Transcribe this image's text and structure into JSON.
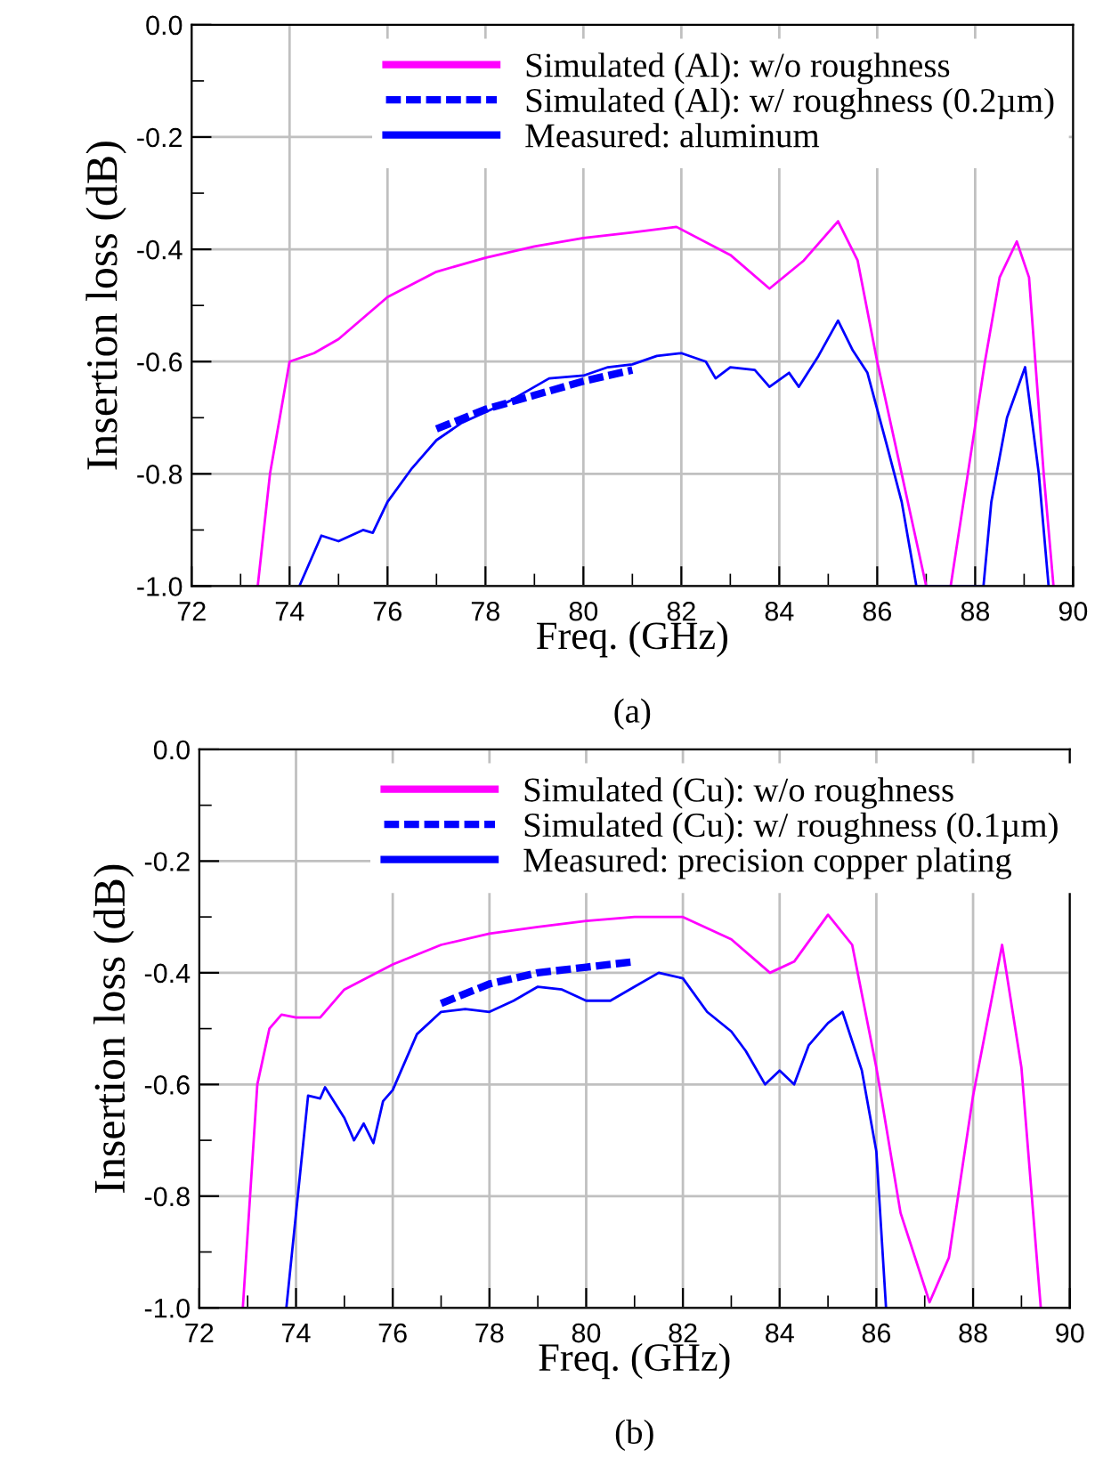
{
  "chart_data": [
    {
      "type": "line",
      "xlabel": "Freq. (GHz)",
      "ylabel": "Insertion loss (dB)",
      "annotations": [
        "(a)"
      ],
      "xlim": [
        72,
        90
      ],
      "xticks": [
        72,
        74,
        76,
        78,
        80,
        82,
        84,
        86,
        88,
        90
      ],
      "ylim": [
        -1.0,
        0.0
      ],
      "yticks": [
        {
          "value": -1.0,
          "label": "-1.0"
        },
        {
          "value": -0.8,
          "label": "-0.8"
        },
        {
          "value": -0.6,
          "label": "-0.6"
        },
        {
          "value": -0.4,
          "label": "-0.4"
        },
        {
          "value": -0.2,
          "label": "-0.2"
        },
        {
          "value": 0.0,
          "label": "0.0"
        }
      ],
      "grid": true,
      "legend": "top",
      "marker": "none",
      "series": [
        {
          "name": "Simulated (Al): w/o roughness",
          "color": "#ff00ff",
          "line_style": "solid",
          "x": [
            73.35,
            73.6,
            74.0,
            74.5,
            75.0,
            76.0,
            77.0,
            78.0,
            79.0,
            80.0,
            81.0,
            81.9,
            83.0,
            83.8,
            84.5,
            85.2,
            85.6,
            86.0,
            86.5,
            87.0,
            87.5,
            87.85,
            88.2,
            88.5,
            88.85,
            89.1,
            89.4,
            89.6
          ],
          "values": [
            -1.0,
            -0.8,
            -0.6,
            -0.585,
            -0.56,
            -0.485,
            -0.44,
            -0.415,
            -0.395,
            -0.38,
            -0.37,
            -0.36,
            -0.41,
            -0.47,
            -0.42,
            -0.35,
            -0.42,
            -0.6,
            -0.8,
            -1.0,
            -1.0,
            -0.8,
            -0.6,
            -0.45,
            -0.386,
            -0.45,
            -0.8,
            -1.0
          ]
        },
        {
          "name": "Simulated (Al): w/ roughness (0.2µm)",
          "color": "#0000ff",
          "line_style": "dashed",
          "x": [
            77,
            78,
            79,
            80,
            81
          ],
          "values": [
            -0.72,
            -0.685,
            -0.66,
            -0.635,
            -0.615
          ]
        },
        {
          "name": "Measured: aluminum",
          "color": "#0000ff",
          "line_style": "solid",
          "x": [
            74.2,
            74.65,
            75.0,
            75.5,
            75.7,
            76.0,
            76.5,
            77.0,
            77.5,
            78.0,
            78.5,
            79.0,
            79.3,
            80.0,
            80.5,
            81.0,
            81.5,
            82.0,
            82.5,
            82.7,
            83.0,
            83.5,
            83.8,
            84.2,
            84.4,
            84.8,
            85.2,
            85.5,
            85.8,
            86.2,
            86.5,
            86.8,
            88.17,
            88.33,
            88.65,
            89.02,
            89.3,
            89.5
          ],
          "values": [
            -1.0,
            -0.91,
            -0.92,
            -0.9,
            -0.905,
            -0.85,
            -0.79,
            -0.74,
            -0.71,
            -0.69,
            -0.67,
            -0.645,
            -0.63,
            -0.625,
            -0.61,
            -0.605,
            -0.59,
            -0.585,
            -0.6,
            -0.63,
            -0.61,
            -0.615,
            -0.645,
            -0.62,
            -0.645,
            -0.59,
            -0.527,
            -0.58,
            -0.62,
            -0.75,
            -0.85,
            -1.0,
            -1.0,
            -0.85,
            -0.7,
            -0.61,
            -0.8,
            -1.0
          ]
        }
      ]
    },
    {
      "type": "line",
      "xlabel": "Freq. (GHz)",
      "ylabel": "Insertion loss (dB)",
      "annotations": [
        "(b)"
      ],
      "xlim": [
        72,
        90
      ],
      "xticks": [
        72,
        74,
        76,
        78,
        80,
        82,
        84,
        86,
        88,
        90
      ],
      "ylim": [
        -1.0,
        0.0
      ],
      "yticks": [
        {
          "value": -1.0,
          "label": "-1.0"
        },
        {
          "value": -0.8,
          "label": "-0.8"
        },
        {
          "value": -0.6,
          "label": "-0.6"
        },
        {
          "value": -0.4,
          "label": "-0.4"
        },
        {
          "value": -0.2,
          "label": "-0.2"
        },
        {
          "value": 0.0,
          "label": "0.0"
        }
      ],
      "grid": true,
      "legend": "top",
      "marker": "none",
      "series": [
        {
          "name": "Simulated (Cu): w/o roughness",
          "color": "#ff00ff",
          "line_style": "solid",
          "x": [
            72.9,
            73.2,
            73.45,
            73.7,
            74.0,
            74.5,
            75.0,
            76.0,
            77.0,
            78.0,
            79.0,
            80.0,
            81.0,
            82.0,
            83.0,
            83.8,
            84.3,
            85.0,
            85.5,
            86.0,
            86.5,
            87.1,
            87.5,
            88.0,
            88.6,
            89.0,
            89.4
          ],
          "values": [
            -1.0,
            -0.6,
            -0.5,
            -0.475,
            -0.48,
            -0.48,
            -0.43,
            -0.385,
            -0.35,
            -0.33,
            -0.318,
            -0.307,
            -0.3,
            -0.3,
            -0.34,
            -0.4,
            -0.38,
            -0.296,
            -0.35,
            -0.57,
            -0.83,
            -0.99,
            -0.91,
            -0.62,
            -0.35,
            -0.57,
            -1.0
          ]
        },
        {
          "name": "Simulated (Cu): w/ roughness (0.1µm)",
          "color": "#0000ff",
          "line_style": "dashed",
          "x": [
            77,
            78,
            79,
            80,
            81
          ],
          "values": [
            -0.455,
            -0.42,
            -0.4,
            -0.39,
            -0.38
          ]
        },
        {
          "name": "Measured: precision copper plating",
          "color": "#0000ff",
          "line_style": "solid",
          "x": [
            73.8,
            74.25,
            74.5,
            74.6,
            75.0,
            75.2,
            75.4,
            75.6,
            75.8,
            76.0,
            76.5,
            77.0,
            77.5,
            78.0,
            78.5,
            79.0,
            79.5,
            80.0,
            80.5,
            81.0,
            81.5,
            82.0,
            82.5,
            83.0,
            83.3,
            83.7,
            84.0,
            84.3,
            84.6,
            85.0,
            85.3,
            85.7,
            86.0,
            86.2
          ],
          "values": [
            -1.0,
            -0.62,
            -0.625,
            -0.605,
            -0.66,
            -0.7,
            -0.67,
            -0.705,
            -0.63,
            -0.61,
            -0.51,
            -0.47,
            -0.465,
            -0.47,
            -0.45,
            -0.425,
            -0.43,
            -0.45,
            -0.45,
            -0.425,
            -0.4,
            -0.41,
            -0.47,
            -0.505,
            -0.54,
            -0.6,
            -0.575,
            -0.6,
            -0.53,
            -0.49,
            -0.47,
            -0.575,
            -0.72,
            -1.0
          ]
        }
      ]
    }
  ]
}
